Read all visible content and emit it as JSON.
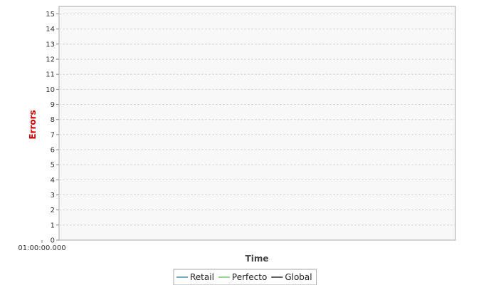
{
  "chart_data": {
    "type": "line",
    "title": "",
    "xlabel": "Time",
    "ylabel": "Errors",
    "ylim": [
      0,
      15.5
    ],
    "y_ticks": [
      0,
      1,
      2,
      3,
      4,
      5,
      6,
      7,
      8,
      9,
      10,
      11,
      12,
      13,
      14,
      15
    ],
    "x_tick_labels": [
      "01:00:00.000"
    ],
    "grid": true,
    "legend_position": "bottom",
    "series": [
      {
        "name": "Retail",
        "color": "#1f6f8b",
        "points": []
      },
      {
        "name": "Perfecto",
        "color": "#66bb55",
        "points": []
      },
      {
        "name": "Global",
        "color": "#000000",
        "points": []
      }
    ]
  },
  "colors": {
    "plot_background": "#f8f8f8",
    "plot_border": "#aaaaaa",
    "grid": "#d8d8d8",
    "ylabel": "#cc0000"
  }
}
